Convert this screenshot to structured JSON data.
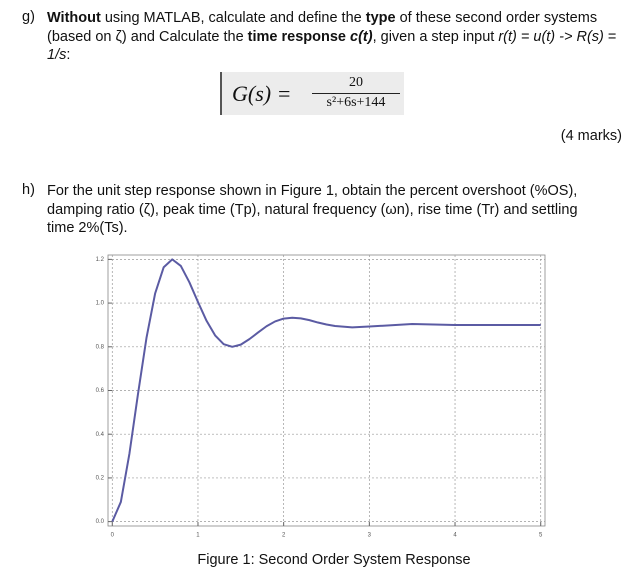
{
  "g": {
    "label": "g)",
    "parts": [
      "Without",
      " using MATLAB, calculate and define the ",
      "type",
      " of these second order systems (based on ζ) and Calculate the ",
      "time response",
      " ",
      "c(t)",
      ", given a step input ",
      "r(t) = u(t) -> R(s)",
      " = ",
      "1/s",
      ":"
    ],
    "formula": {
      "lhs": "G(s) =",
      "numerator": "20",
      "denominator": "s²+6s+144"
    },
    "marks": "(4 marks)"
  },
  "h": {
    "label": "h)",
    "text": "For the unit step response shown in Figure 1, obtain the percent overshoot (%OS), damping ratio (ζ), peak time (Tp), natural frequency (ωn), rise time (Tr) and settling time 2%(Ts)."
  },
  "chart_data": {
    "type": "line",
    "title": "Figure 1: Second Order System Response",
    "x": [
      0,
      0.1,
      0.2,
      0.3,
      0.4,
      0.5,
      0.6,
      0.7,
      0.8,
      0.9,
      1.0,
      1.1,
      1.2,
      1.3,
      1.4,
      1.5,
      1.6,
      1.7,
      1.8,
      1.9,
      2.0,
      2.1,
      2.2,
      2.3,
      2.4,
      2.5,
      2.6,
      2.8,
      3.0,
      3.5,
      4.0,
      4.5,
      5.0
    ],
    "series": [
      {
        "color": "#5b5ba3",
        "values": [
          0,
          0.09,
          0.311,
          0.584,
          0.843,
          1.044,
          1.164,
          1.2,
          1.17,
          1.095,
          1.005,
          0.919,
          0.852,
          0.812,
          0.8,
          0.81,
          0.835,
          0.865,
          0.894,
          0.916,
          0.929,
          0.933,
          0.93,
          0.922,
          0.911,
          0.902,
          0.895,
          0.889,
          0.893,
          0.904,
          0.9,
          0.9,
          0.9
        ]
      }
    ],
    "xlim": [
      -0.05,
      5.05
    ],
    "ylim": [
      -0.02,
      1.22
    ],
    "xticks": [
      0,
      1,
      2,
      3,
      4,
      5
    ],
    "yticks": [
      {
        "value": 0,
        "label": "0.0"
      },
      0.2,
      0.4,
      0.6,
      0.8,
      {
        "value": 1,
        "label": "1.0"
      },
      1.2
    ],
    "grid": true
  }
}
